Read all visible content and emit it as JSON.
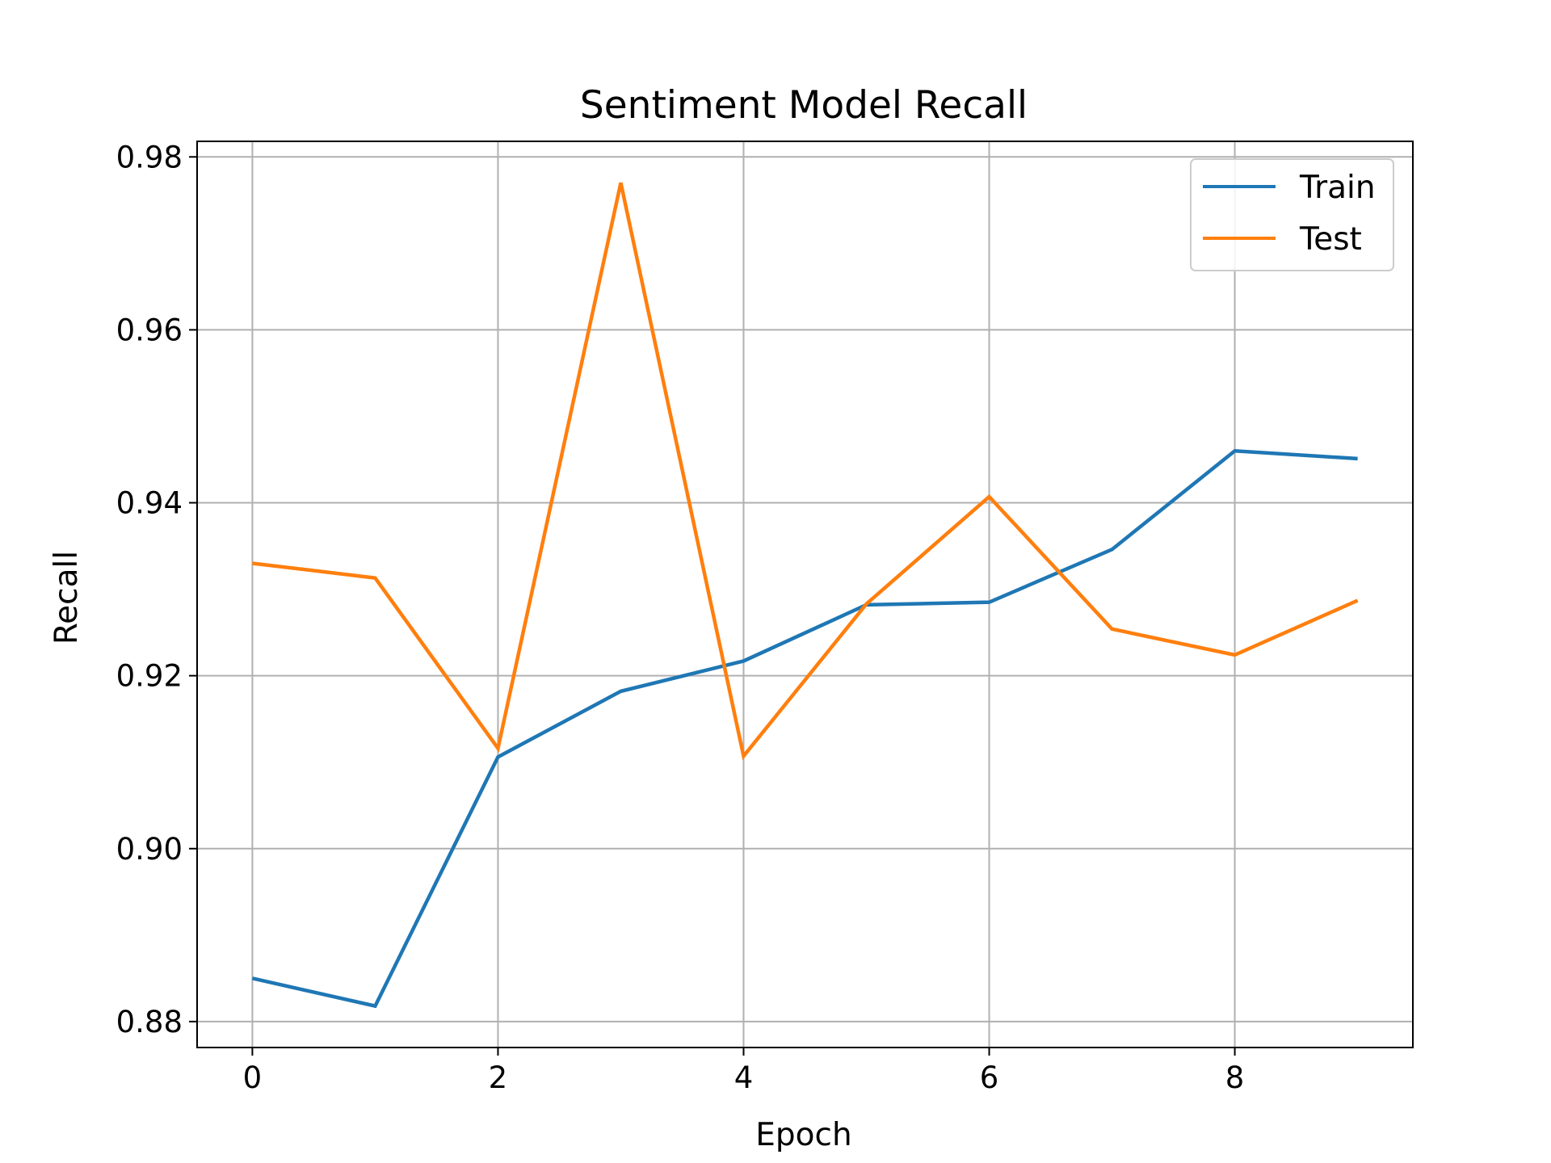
{
  "chart_data": {
    "type": "line",
    "title": "Sentiment Model Recall",
    "xlabel": "Epoch",
    "ylabel": "Recall",
    "x": [
      0,
      1,
      2,
      3,
      4,
      5,
      6,
      7,
      8,
      9
    ],
    "series": [
      {
        "name": "Train",
        "color": "#1f77b4",
        "values": [
          0.885,
          0.8818,
          0.9106,
          0.9182,
          0.9217,
          0.9282,
          0.9285,
          0.9346,
          0.946,
          0.9451
        ]
      },
      {
        "name": "Test",
        "color": "#ff7f0e",
        "values": [
          0.933,
          0.9313,
          0.9116,
          0.977,
          0.9107,
          0.9283,
          0.9407,
          0.9254,
          0.9224,
          0.9287
        ]
      }
    ],
    "xlim": [
      -0.45,
      9.45
    ],
    "ylim": [
      0.877,
      0.9818
    ],
    "xticks": [
      0,
      2,
      4,
      6,
      8
    ],
    "xtick_labels": [
      "0",
      "2",
      "4",
      "6",
      "8"
    ],
    "yticks": [
      0.88,
      0.9,
      0.92,
      0.94,
      0.96,
      0.98
    ],
    "ytick_labels": [
      "0.88",
      "0.90",
      "0.92",
      "0.94",
      "0.96",
      "0.98"
    ],
    "grid": true,
    "legend_position": "top-right"
  }
}
